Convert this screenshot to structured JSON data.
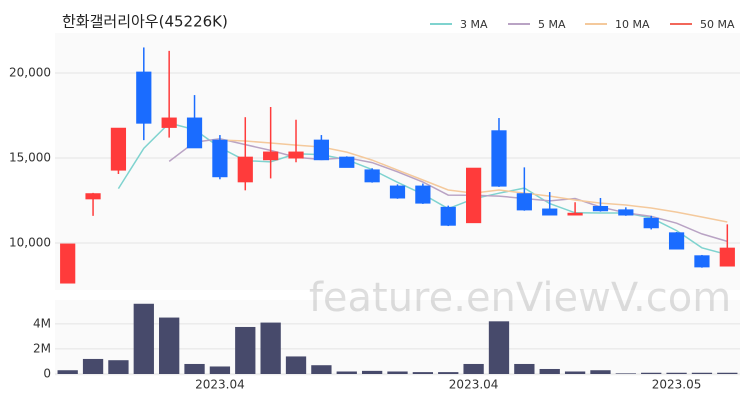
{
  "chart_data": {
    "type": "candlestick",
    "title": "한화갤러리아우(45226K)",
    "watermark": "feature.enViewV.com",
    "categories": [
      null,
      null,
      null,
      null,
      null,
      null,
      "2023.04",
      null,
      null,
      null,
      null,
      null,
      null,
      null,
      null,
      null,
      "2023.04",
      null,
      null,
      null,
      null,
      null,
      null,
      null,
      "2023.05",
      null,
      null
    ],
    "open": [
      7650,
      12600,
      14290,
      20050,
      16800,
      17350,
      16050,
      13600,
      14900,
      15000,
      16050,
      15050,
      14300,
      13350,
      13350,
      12100,
      11200,
      16600,
      12900,
      12000,
      11650,
      12150,
      11950,
      11450,
      10600,
      9250,
      8650
    ],
    "high": [
      9940,
      12950,
      16750,
      21500,
      21300,
      18700,
      16350,
      17400,
      18000,
      17250,
      16350,
      15100,
      14400,
      13450,
      13500,
      12200,
      14400,
      17350,
      14450,
      13000,
      12400,
      12650,
      12100,
      11600,
      10650,
      9300,
      11100
    ],
    "low": [
      7650,
      11600,
      14060,
      16050,
      16200,
      15600,
      13750,
      13100,
      13800,
      14750,
      14900,
      14450,
      13550,
      12600,
      12300,
      11000,
      11200,
      13300,
      11900,
      11650,
      11650,
      11850,
      11600,
      10800,
      9650,
      8550,
      8650
    ],
    "close": [
      9940,
      12900,
      16750,
      17050,
      17350,
      15600,
      13900,
      15050,
      15350,
      15350,
      14900,
      14450,
      13600,
      12650,
      12350,
      11050,
      14400,
      13350,
      11950,
      11650,
      11750,
      11900,
      11650,
      10900,
      9650,
      8600,
      9700
    ],
    "up_color": "#ff3b3b",
    "down_color": "#1a6cff",
    "ylim": [
      7240,
      22350
    ],
    "yticks": [
      {
        "value": 10000,
        "label": "10,000"
      },
      {
        "value": 15000,
        "label": "15,000"
      },
      {
        "value": 20000,
        "label": "20,000"
      }
    ],
    "grid": true,
    "legend": "top-right",
    "series": [
      {
        "name": "3 MA",
        "color": "#7fd3cf",
        "values": [
          null,
          null,
          13200,
          15570,
          17050,
          16670,
          15620,
          14850,
          14770,
          15250,
          15200,
          14900,
          14320,
          13570,
          12870,
          12020,
          12600,
          12930,
          13230,
          12320,
          11780,
          11770,
          11770,
          11480,
          10730,
          9720,
          9320
        ]
      },
      {
        "name": "5 MA",
        "color": "#b9a3c4",
        "values": [
          null,
          null,
          null,
          null,
          14800,
          15930,
          16130,
          15790,
          15450,
          15050,
          14910,
          15020,
          14730,
          14190,
          13590,
          12820,
          12810,
          12760,
          12620,
          12480,
          12620,
          12120,
          11780,
          11570,
          11170,
          10540,
          10100
        ]
      },
      {
        "name": "10 MA",
        "color": "#f4c99c",
        "values": [
          null,
          null,
          null,
          null,
          null,
          null,
          16060,
          16000,
          15880,
          15760,
          15650,
          15350,
          14880,
          14290,
          13710,
          13120,
          12940,
          13120,
          12940,
          12760,
          12530,
          12350,
          12240,
          12060,
          11820,
          11530,
          11240
        ]
      },
      {
        "name": "50 MA",
        "color": "#f2675a",
        "values": [
          null,
          null,
          null,
          null,
          null,
          null,
          null,
          null,
          null,
          null,
          null,
          null,
          null,
          null,
          null,
          null,
          null,
          null,
          null,
          null,
          null,
          null,
          null,
          null,
          null,
          null,
          null
        ]
      }
    ],
    "volume": {
      "values": [
        300000,
        1200000,
        1100000,
        5600000,
        4500000,
        800000,
        600000,
        3750000,
        4100000,
        1400000,
        700000,
        200000,
        250000,
        200000,
        150000,
        150000,
        800000,
        4200000,
        800000,
        400000,
        200000,
        300000,
        50000,
        100000,
        100000,
        100000,
        100000
      ],
      "color": "#474a6b",
      "ylim": [
        0,
        5900000
      ],
      "yticks": [
        0,
        {
          "value": 2000000,
          "label": "2M"
        },
        {
          "value": 4000000,
          "label": "4M"
        }
      ]
    }
  }
}
